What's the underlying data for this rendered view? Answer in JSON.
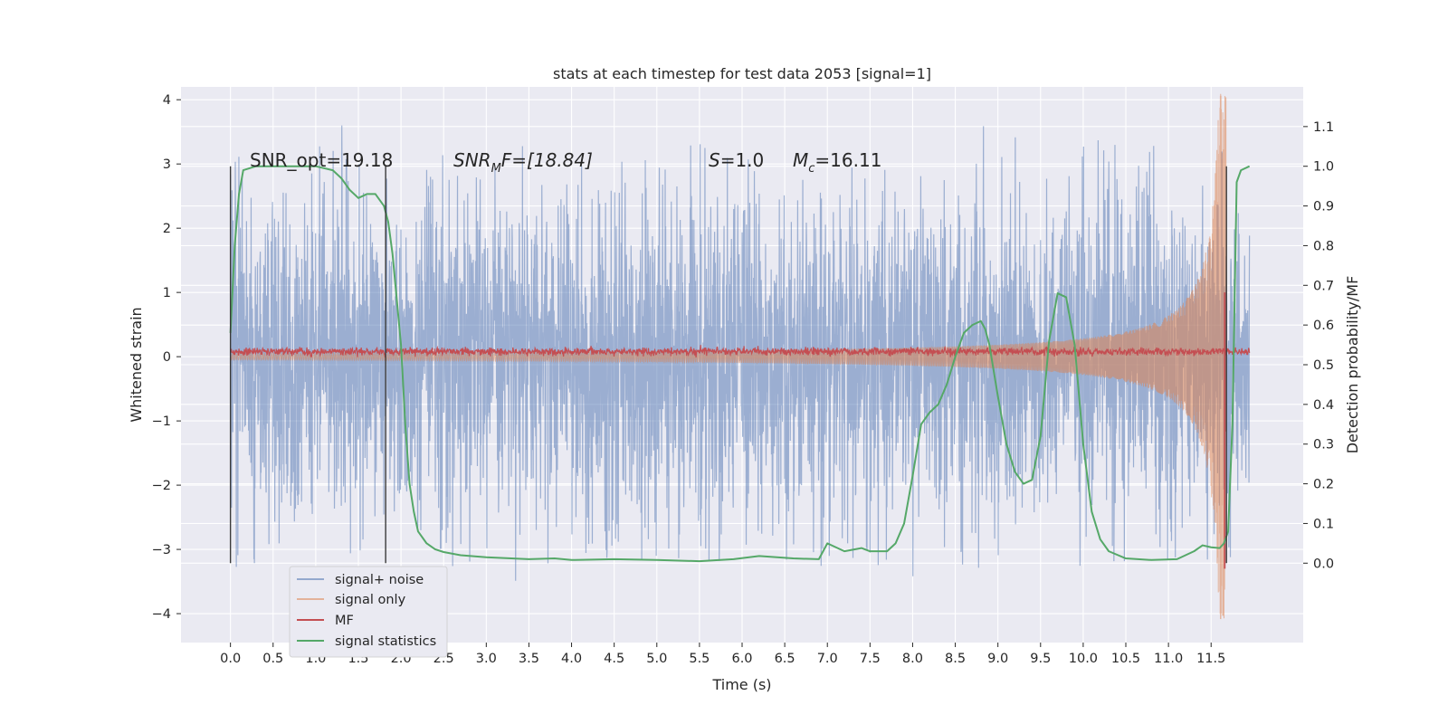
{
  "chart_data": {
    "type": "line",
    "title": "stats at each timestep for test data 2053 [signal=1]",
    "xlabel": "Time (s)",
    "ylabel": "Whitened strain",
    "y2label": "Detection probability/MF",
    "xlim": [
      -0.58,
      12.58
    ],
    "ylim": [
      -4.45,
      4.2
    ],
    "y2lim": [
      -0.2,
      1.2
    ],
    "xticks": [
      0.0,
      0.5,
      1.0,
      1.5,
      2.0,
      2.5,
      3.0,
      3.5,
      4.0,
      4.5,
      5.0,
      5.5,
      6.0,
      6.5,
      7.0,
      7.5,
      8.0,
      8.5,
      9.0,
      9.5,
      10.0,
      10.5,
      11.0,
      11.5
    ],
    "xtick_labels": [
      "0.0",
      "0.5",
      "1.0",
      "1.5",
      "2.0",
      "2.5",
      "3.0",
      "3.5",
      "4.0",
      "4.5",
      "5.0",
      "5.5",
      "6.0",
      "6.5",
      "7.0",
      "7.5",
      "8.0",
      "8.5",
      "9.0",
      "9.5",
      "10.0",
      "10.5",
      "11.0",
      "11.5"
    ],
    "yticks": [
      -4,
      -3,
      -2,
      -1,
      0,
      1,
      2,
      3,
      4
    ],
    "ytick_labels": [
      "−4",
      "−3",
      "−2",
      "−1",
      "0",
      "1",
      "2",
      "3",
      "4"
    ],
    "y2ticks": [
      0.0,
      0.1,
      0.2,
      0.3,
      0.4,
      0.5,
      0.6,
      0.7,
      0.8,
      0.9,
      1.0,
      1.1
    ],
    "y2tick_labels": [
      "0.0",
      "0.1",
      "0.2",
      "0.3",
      "0.4",
      "0.5",
      "0.6",
      "0.7",
      "0.8",
      "0.9",
      "1.0",
      "1.1"
    ],
    "grid": true,
    "legend_position": "lower-left",
    "annotations": {
      "snr_opt": "SNR_opt=19.18",
      "snr_mf_main": "SNR",
      "snr_mf_sub": "M",
      "snr_mf_rest": "F=[18.84]",
      "s_main": "S",
      "s_rest": "=1.0",
      "mc_main": "M",
      "mc_sub": "c",
      "mc_rest": "=16.11"
    },
    "vertical_lines": [
      0.0,
      1.82,
      11.68
    ],
    "series": [
      {
        "name": "signal+ noise",
        "color": "#4c72b0",
        "kind": "noise",
        "x_range": [
          0.0,
          11.95
        ],
        "envelope_bulk": 1.7,
        "envelope_peak": 3.6
      },
      {
        "name": "signal only",
        "color": "#dd8452",
        "kind": "chirp",
        "x_range": [
          0.0,
          11.68
        ],
        "amp_start": 0.05,
        "amp_peak": 4.1
      },
      {
        "name": "MF",
        "color": "#c44e52",
        "kind": "flat-noise",
        "x_range": [
          0.0,
          11.95
        ],
        "level": 0.08,
        "jitter": 0.06,
        "spike_x": 11.66,
        "spike_min": -3.3,
        "spike_max": 1.0
      },
      {
        "name": "signal statistics",
        "color": "#55a868",
        "kind": "line",
        "axis": "secondary",
        "x": [
          0.0,
          0.05,
          0.1,
          0.15,
          0.3,
          0.5,
          1.0,
          1.2,
          1.3,
          1.4,
          1.5,
          1.6,
          1.7,
          1.8,
          1.85,
          1.9,
          2.0,
          2.05,
          2.1,
          2.15,
          2.2,
          2.3,
          2.4,
          2.5,
          2.7,
          3.0,
          3.5,
          3.8,
          4.0,
          4.5,
          5.0,
          5.5,
          5.9,
          6.2,
          6.6,
          6.9,
          7.0,
          7.2,
          7.4,
          7.5,
          7.7,
          7.8,
          7.9,
          8.0,
          8.1,
          8.2,
          8.3,
          8.4,
          8.5,
          8.6,
          8.7,
          8.8,
          8.85,
          8.9,
          9.0,
          9.1,
          9.2,
          9.3,
          9.4,
          9.5,
          9.6,
          9.7,
          9.8,
          9.9,
          10.0,
          10.1,
          10.2,
          10.3,
          10.5,
          10.8,
          11.1,
          11.3,
          11.4,
          11.5,
          11.6,
          11.65,
          11.7,
          11.75,
          11.8,
          11.85,
          11.95
        ],
        "values": [
          0.58,
          0.8,
          0.93,
          0.99,
          1.0,
          1.0,
          1.0,
          0.99,
          0.97,
          0.94,
          0.92,
          0.93,
          0.93,
          0.9,
          0.86,
          0.78,
          0.55,
          0.35,
          0.2,
          0.13,
          0.08,
          0.05,
          0.035,
          0.028,
          0.02,
          0.015,
          0.01,
          0.012,
          0.008,
          0.01,
          0.008,
          0.005,
          0.01,
          0.018,
          0.012,
          0.01,
          0.05,
          0.03,
          0.038,
          0.03,
          0.03,
          0.05,
          0.1,
          0.22,
          0.35,
          0.38,
          0.4,
          0.45,
          0.52,
          0.58,
          0.6,
          0.61,
          0.59,
          0.55,
          0.42,
          0.3,
          0.23,
          0.2,
          0.21,
          0.32,
          0.56,
          0.68,
          0.67,
          0.55,
          0.3,
          0.13,
          0.06,
          0.03,
          0.012,
          0.008,
          0.01,
          0.03,
          0.045,
          0.04,
          0.038,
          0.05,
          0.08,
          0.35,
          0.96,
          0.99,
          1.0
        ]
      }
    ]
  }
}
